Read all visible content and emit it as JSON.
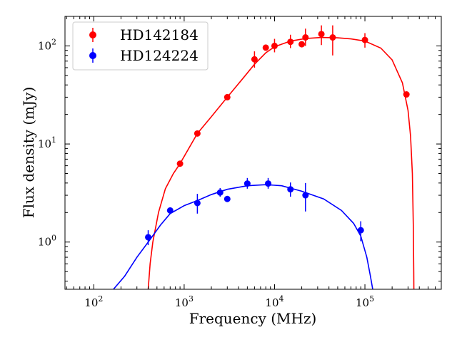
{
  "chart_data": {
    "type": "scatter",
    "xlabel": "Frequency (MHz)",
    "ylabel": "Flux density (mJy)",
    "xscale": "log",
    "yscale": "log",
    "xlim": [
      48,
      700000
    ],
    "ylim": [
      0.33,
      200
    ],
    "grid": false,
    "legend_position": "top-left",
    "x_ticks": [
      {
        "value": 100,
        "base": "10",
        "exp": "2"
      },
      {
        "value": 1000,
        "base": "10",
        "exp": "3"
      },
      {
        "value": 10000,
        "base": "10",
        "exp": "4"
      },
      {
        "value": 100000,
        "base": "10",
        "exp": "5"
      }
    ],
    "y_ticks": [
      {
        "value": 1,
        "base": "10",
        "exp": "0"
      },
      {
        "value": 10,
        "base": "10",
        "exp": "1"
      },
      {
        "value": 100,
        "base": "10",
        "exp": "2"
      }
    ],
    "series": [
      {
        "name": "HD142184",
        "color": "#ff0000",
        "points": [
          {
            "x": 900,
            "y": 6.3,
            "lo": 6.3,
            "hi": 6.3
          },
          {
            "x": 1400,
            "y": 12.8,
            "lo": 12.8,
            "hi": 12.8
          },
          {
            "x": 3000,
            "y": 30,
            "lo": 30,
            "hi": 30
          },
          {
            "x": 6000,
            "y": 73,
            "lo": 60,
            "hi": 88
          },
          {
            "x": 8000,
            "y": 96,
            "lo": 96,
            "hi": 96
          },
          {
            "x": 10000,
            "y": 100,
            "lo": 86,
            "hi": 118
          },
          {
            "x": 15000,
            "y": 110,
            "lo": 95,
            "hi": 130
          },
          {
            "x": 20000,
            "y": 104,
            "lo": 104,
            "hi": 104
          },
          {
            "x": 22000,
            "y": 122,
            "lo": 100,
            "hi": 150
          },
          {
            "x": 33000,
            "y": 132,
            "lo": 102,
            "hi": 162
          },
          {
            "x": 44000,
            "y": 122,
            "lo": 80,
            "hi": 162
          },
          {
            "x": 100000,
            "y": 115,
            "lo": 96,
            "hi": 135
          },
          {
            "x": 288000,
            "y": 32,
            "lo": 32,
            "hi": 32
          }
        ],
        "model_curve": [
          {
            "x": 400,
            "y": 0.33
          },
          {
            "x": 420,
            "y": 0.6
          },
          {
            "x": 450,
            "y": 1.0
          },
          {
            "x": 520,
            "y": 2.0
          },
          {
            "x": 620,
            "y": 3.5
          },
          {
            "x": 760,
            "y": 5.0
          },
          {
            "x": 900,
            "y": 6.3
          },
          {
            "x": 1400,
            "y": 12.8
          },
          {
            "x": 2000,
            "y": 19
          },
          {
            "x": 3000,
            "y": 30
          },
          {
            "x": 4500,
            "y": 47
          },
          {
            "x": 6000,
            "y": 65
          },
          {
            "x": 8000,
            "y": 85
          },
          {
            "x": 10000,
            "y": 98
          },
          {
            "x": 15000,
            "y": 112
          },
          {
            "x": 22000,
            "y": 119
          },
          {
            "x": 33000,
            "y": 122
          },
          {
            "x": 50000,
            "y": 121
          },
          {
            "x": 70000,
            "y": 118
          },
          {
            "x": 100000,
            "y": 112
          },
          {
            "x": 150000,
            "y": 95
          },
          {
            "x": 200000,
            "y": 72
          },
          {
            "x": 260000,
            "y": 42
          },
          {
            "x": 300000,
            "y": 22
          },
          {
            "x": 320000,
            "y": 12
          },
          {
            "x": 335000,
            "y": 5
          },
          {
            "x": 343000,
            "y": 1.5
          },
          {
            "x": 347000,
            "y": 0.5
          },
          {
            "x": 348000,
            "y": 0.33
          }
        ]
      },
      {
        "name": "HD124224",
        "color": "#0000ff",
        "points": [
          {
            "x": 400,
            "y": 1.12,
            "lo": 0.93,
            "hi": 1.32
          },
          {
            "x": 700,
            "y": 2.1,
            "lo": 2.0,
            "hi": 2.2
          },
          {
            "x": 1400,
            "y": 2.5,
            "lo": 1.95,
            "hi": 3.1
          },
          {
            "x": 2500,
            "y": 3.2,
            "lo": 2.9,
            "hi": 3.55
          },
          {
            "x": 3000,
            "y": 2.75,
            "lo": 2.6,
            "hi": 2.9
          },
          {
            "x": 5000,
            "y": 3.95,
            "lo": 3.5,
            "hi": 4.5
          },
          {
            "x": 8500,
            "y": 3.95,
            "lo": 3.5,
            "hi": 4.5
          },
          {
            "x": 15000,
            "y": 3.45,
            "lo": 2.9,
            "hi": 4.05
          },
          {
            "x": 22000,
            "y": 3.0,
            "lo": 2.05,
            "hi": 4.0
          },
          {
            "x": 90000,
            "y": 1.32,
            "lo": 1.02,
            "hi": 1.63
          }
        ],
        "model_curve": [
          {
            "x": 165,
            "y": 0.33
          },
          {
            "x": 220,
            "y": 0.45
          },
          {
            "x": 300,
            "y": 0.7
          },
          {
            "x": 400,
            "y": 1.0
          },
          {
            "x": 550,
            "y": 1.5
          },
          {
            "x": 700,
            "y": 1.95
          },
          {
            "x": 1000,
            "y": 2.35
          },
          {
            "x": 1400,
            "y": 2.65
          },
          {
            "x": 2000,
            "y": 3.05
          },
          {
            "x": 3000,
            "y": 3.45
          },
          {
            "x": 5000,
            "y": 3.75
          },
          {
            "x": 8000,
            "y": 3.85
          },
          {
            "x": 12000,
            "y": 3.75
          },
          {
            "x": 20000,
            "y": 3.3
          },
          {
            "x": 35000,
            "y": 2.75
          },
          {
            "x": 55000,
            "y": 2.1
          },
          {
            "x": 75000,
            "y": 1.55
          },
          {
            "x": 90000,
            "y": 1.15
          },
          {
            "x": 105000,
            "y": 0.7
          },
          {
            "x": 115000,
            "y": 0.45
          },
          {
            "x": 122000,
            "y": 0.33
          }
        ]
      }
    ]
  }
}
